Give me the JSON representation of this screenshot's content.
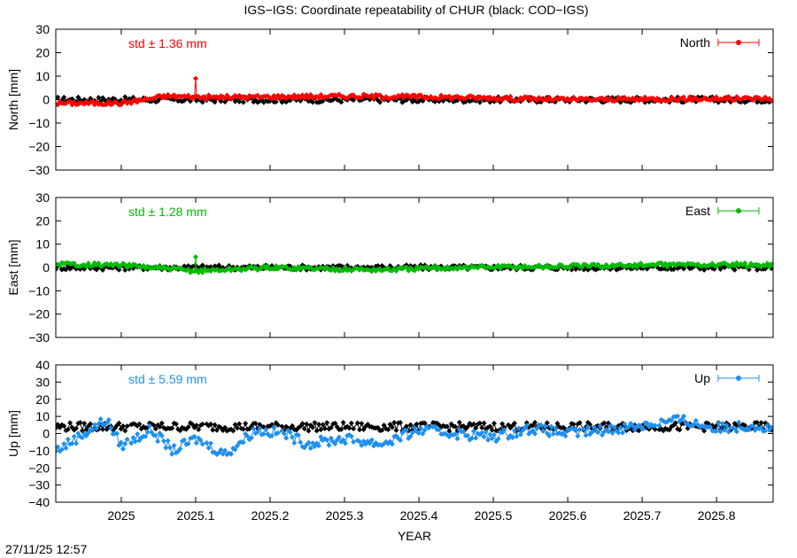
{
  "chart_data": {
    "type": "line",
    "title": "IGS−IGS: Coordinate repeatability of CHUR (black: COD−IGS)",
    "xlabel": "YEAR",
    "xlim": [
      2024.912,
      2025.876
    ],
    "x_ticks": [
      2025.0,
      2025.1,
      2025.2,
      2025.3,
      2025.4,
      2025.5,
      2025.6,
      2025.7,
      2025.8
    ],
    "x_tick_labels": [
      "2025",
      "2025.1",
      "2025.2",
      "2025.3",
      "2025.4",
      "2025.5",
      "2025.6",
      "2025.7",
      "2025.8"
    ],
    "x_start": 2024.912,
    "x_step": 0.00274,
    "n_points": 352,
    "grid": false,
    "legend_position": "top-right",
    "panels": [
      {
        "ylabel": "North [mm]",
        "ylim": [
          -30,
          30
        ],
        "y_ticks": [
          30,
          20,
          10,
          0,
          -10,
          -20,
          -30
        ],
        "y_tick_labels": [
          "30",
          "20",
          "10",
          "0",
          "−10",
          "−20",
          "−30"
        ],
        "legend": "North",
        "std_label": "std ± 1.36 mm",
        "std_mm": 1.36,
        "color": "#ff0000",
        "black_spread": 1.2,
        "colored_trend": [
          [
            2024.912,
            -1.5
          ],
          [
            2025.0,
            -1.5
          ],
          [
            2025.06,
            1.5
          ],
          [
            2025.12,
            1.0
          ],
          [
            2025.3,
            1.5
          ],
          [
            2025.45,
            1.0
          ],
          [
            2025.6,
            0.0
          ],
          [
            2025.75,
            0.3
          ],
          [
            2025.876,
            0.5
          ]
        ],
        "colored_spread": 0.9,
        "outliers": [
          [
            2025.1,
            9.0
          ]
        ]
      },
      {
        "ylabel": "East [mm]",
        "ylim": [
          -30,
          30
        ],
        "y_ticks": [
          30,
          20,
          10,
          0,
          -10,
          -20,
          -30
        ],
        "y_tick_labels": [
          "30",
          "20",
          "10",
          "0",
          "−10",
          "−20",
          "−30"
        ],
        "legend": "East",
        "std_label": "std ± 1.28 mm",
        "std_mm": 1.28,
        "color": "#00bb00",
        "black_spread": 1.1,
        "colored_trend": [
          [
            2024.912,
            1.5
          ],
          [
            2025.0,
            1.0
          ],
          [
            2025.1,
            -1.5
          ],
          [
            2025.2,
            0.0
          ],
          [
            2025.35,
            -1.0
          ],
          [
            2025.45,
            0.0
          ],
          [
            2025.6,
            0.5
          ],
          [
            2025.75,
            1.2
          ],
          [
            2025.876,
            1.0
          ]
        ],
        "colored_spread": 0.9,
        "outliers": [
          [
            2025.1,
            4.5
          ]
        ]
      },
      {
        "ylabel": "Up [mm]",
        "ylim": [
          -40,
          40
        ],
        "y_ticks": [
          40,
          30,
          20,
          10,
          0,
          -10,
          -20,
          -30,
          -40
        ],
        "y_tick_labels": [
          "40",
          "30",
          "20",
          "10",
          "0",
          "−10",
          "−20",
          "−30",
          "−40"
        ],
        "legend": "Up",
        "std_label": "std ± 5.59 mm",
        "std_mm": 5.59,
        "color": "#1e8ff0",
        "black_spread": 2.5,
        "colored_trend": [
          [
            2024.912,
            -10
          ],
          [
            2024.95,
            0
          ],
          [
            2024.98,
            8
          ],
          [
            2025.0,
            -7
          ],
          [
            2025.04,
            2
          ],
          [
            2025.07,
            -10
          ],
          [
            2025.1,
            -3
          ],
          [
            2025.14,
            -12
          ],
          [
            2025.18,
            2
          ],
          [
            2025.22,
            0
          ],
          [
            2025.25,
            -6
          ],
          [
            2025.3,
            -3
          ],
          [
            2025.35,
            -6
          ],
          [
            2025.4,
            2
          ],
          [
            2025.45,
            0
          ],
          [
            2025.5,
            -2
          ],
          [
            2025.55,
            3
          ],
          [
            2025.6,
            0
          ],
          [
            2025.65,
            2
          ],
          [
            2025.7,
            5
          ],
          [
            2025.75,
            8
          ],
          [
            2025.8,
            3
          ],
          [
            2025.85,
            5
          ],
          [
            2025.876,
            2
          ]
        ],
        "colored_spread": 3.0,
        "outliers": []
      }
    ]
  },
  "footer": {
    "timestamp": "27/11/25 12:57"
  }
}
